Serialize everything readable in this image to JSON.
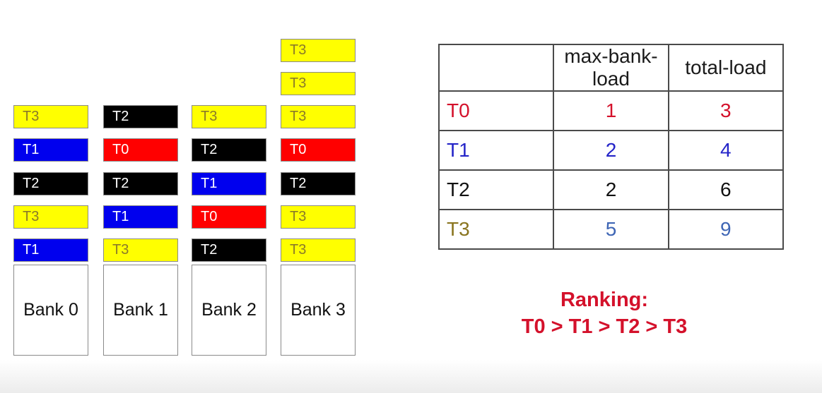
{
  "colors": {
    "T0": "#ff0000",
    "T1": "#0000ee",
    "T2": "#000000",
    "T3": "#ffff00",
    "table_T0": "#d4112b",
    "table_T1": "#2424c8",
    "table_T2": "#111111",
    "table_T3": "#8a7520",
    "table_row3_values": "#3f66b5",
    "ranking": "#d4112b"
  },
  "banks": [
    {
      "label": "Bank 0",
      "stack_top_to_bottom": [
        "T3",
        "T1",
        "T2",
        "T3",
        "T1"
      ]
    },
    {
      "label": "Bank 1",
      "stack_top_to_bottom": [
        "T2",
        "T0",
        "T2",
        "T1",
        "T3"
      ]
    },
    {
      "label": "Bank 2",
      "stack_top_to_bottom": [
        "T3",
        "T2",
        "T1",
        "T0",
        "T2"
      ]
    },
    {
      "label": "Bank 3",
      "stack_top_to_bottom": [
        "T3",
        "T3",
        "T3",
        "T0",
        "T2",
        "T3",
        "T3"
      ]
    }
  ],
  "table": {
    "headers": [
      "",
      "max-bank-load",
      "total-load"
    ],
    "rows": [
      {
        "thread": "T0",
        "max_bank_load": "1",
        "total_load": "3"
      },
      {
        "thread": "T1",
        "max_bank_load": "2",
        "total_load": "4"
      },
      {
        "thread": "T2",
        "max_bank_load": "2",
        "total_load": "6"
      },
      {
        "thread": "T3",
        "max_bank_load": "5",
        "total_load": "9"
      }
    ]
  },
  "ranking": {
    "title": "Ranking:",
    "order": "T0 > T1 > T2 > T3"
  }
}
